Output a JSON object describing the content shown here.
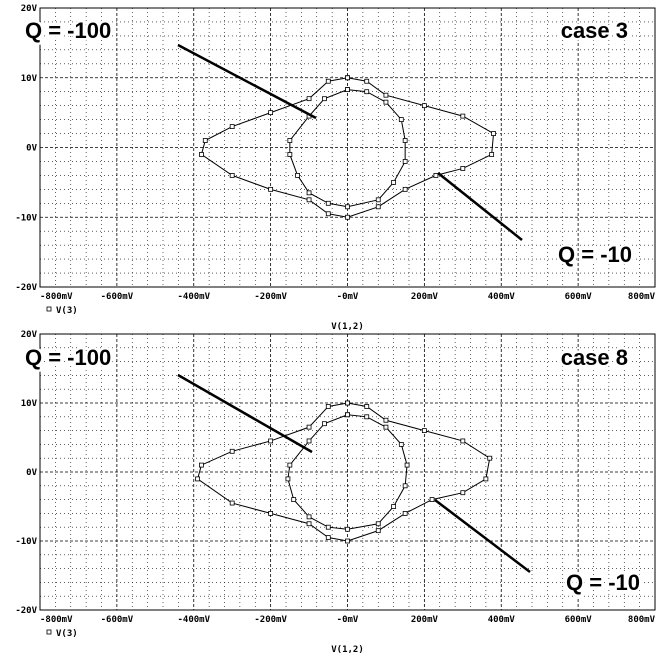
{
  "chart_data": [
    {
      "type": "line",
      "x_label": "V(1,2)",
      "annotations": [
        "Q = -100",
        "Q = -10",
        "case 3"
      ],
      "xlim": [
        -800,
        800
      ],
      "ylim": [
        -20,
        20
      ],
      "xticks": [
        {
          "value": -800,
          "label": "-800mV"
        },
        {
          "value": -600,
          "label": "-600mV"
        },
        {
          "value": -400,
          "label": "-400mV"
        },
        {
          "value": -200,
          "label": "-200mV"
        },
        {
          "value": 0,
          "label": "-0mV"
        },
        {
          "value": 200,
          "label": "200mV"
        },
        {
          "value": 400,
          "label": "400mV"
        },
        {
          "value": 600,
          "label": "600mV"
        },
        {
          "value": 800,
          "label": "800mV"
        }
      ],
      "yticks": [
        {
          "value": -20,
          "label": "-20V"
        },
        {
          "value": -10,
          "label": "-10V"
        },
        {
          "value": 0,
          "label": "0V"
        },
        {
          "value": 10,
          "label": "10V"
        },
        {
          "value": 20,
          "label": "20V"
        }
      ],
      "grid": true,
      "series": [
        {
          "name": "V(3)",
          "color": "#000000",
          "x": [
            0,
            50,
            100,
            200,
            300,
            380,
            375,
            300,
            230,
            150,
            80,
            0,
            -50,
            -100,
            -200,
            -300,
            -380,
            -370,
            -300,
            -200,
            -100,
            -50,
            0,
            null,
            0,
            50,
            100,
            140,
            150,
            150,
            120,
            80,
            0,
            -50,
            -100,
            -130,
            -150,
            -150,
            -100,
            -60,
            0
          ],
          "values": [
            10,
            9.5,
            7.5,
            6,
            4.5,
            2,
            -1,
            -3,
            -4,
            -6,
            -8.5,
            -10,
            -9.5,
            -7.5,
            -6,
            -4,
            -1,
            1,
            3,
            5,
            7,
            9.5,
            10,
            null,
            8.3,
            8,
            6.5,
            4,
            1,
            -2,
            -5,
            -7.5,
            -8.5,
            -8,
            -6.5,
            -4,
            -1,
            1,
            4.5,
            7,
            8.3
          ]
        }
      ]
    },
    {
      "type": "line",
      "x_label": "V(1,2)",
      "annotations": [
        "Q = -100",
        "Q = -10",
        "case 8"
      ],
      "xlim": [
        -800,
        800
      ],
      "ylim": [
        -20,
        20
      ],
      "xticks": [
        {
          "value": -800,
          "label": "-800mV"
        },
        {
          "value": -600,
          "label": "-600mV"
        },
        {
          "value": -400,
          "label": "-400mV"
        },
        {
          "value": -200,
          "label": "-200mV"
        },
        {
          "value": 0,
          "label": "-0mV"
        },
        {
          "value": 200,
          "label": "200mV"
        },
        {
          "value": 400,
          "label": "400mV"
        },
        {
          "value": 600,
          "label": "600mV"
        },
        {
          "value": 800,
          "label": "800mV"
        }
      ],
      "yticks": [
        {
          "value": -20,
          "label": "-20V"
        },
        {
          "value": -10,
          "label": "-10V"
        },
        {
          "value": 0,
          "label": "0V"
        },
        {
          "value": 10,
          "label": "10V"
        },
        {
          "value": 20,
          "label": "20V"
        }
      ],
      "grid": true,
      "series": [
        {
          "name": "V(3)",
          "color": "#000000",
          "x": [
            0,
            50,
            100,
            200,
            300,
            370,
            360,
            300,
            220,
            150,
            80,
            0,
            -50,
            -100,
            -200,
            -300,
            -390,
            -380,
            -300,
            -200,
            -100,
            -50,
            0,
            null,
            0,
            50,
            100,
            140,
            155,
            150,
            120,
            80,
            0,
            -50,
            -100,
            -140,
            -155,
            -150,
            -100,
            -60,
            0
          ],
          "values": [
            10,
            9.5,
            7.5,
            6,
            4.5,
            2,
            -1,
            -3,
            -4,
            -6,
            -8.5,
            -10,
            -9.5,
            -7.5,
            -6,
            -4.5,
            -1,
            1,
            3,
            4.5,
            6.5,
            9.5,
            10,
            null,
            8.3,
            8,
            6.5,
            4,
            1,
            -2,
            -5,
            -7.5,
            -8.3,
            -8,
            -6.5,
            -4,
            -1,
            1,
            4.5,
            7,
            8.3
          ]
        }
      ]
    }
  ]
}
